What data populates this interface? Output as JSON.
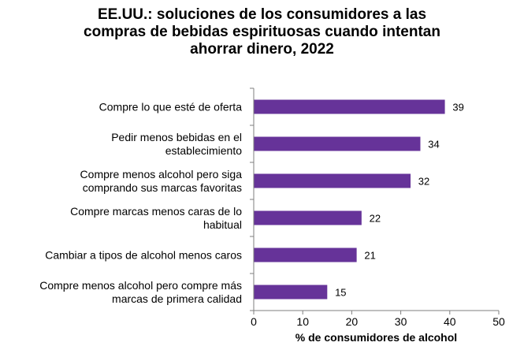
{
  "chart_data": {
    "type": "bar",
    "orientation": "horizontal",
    "title_lines": [
      "EE.UU.: soluciones de los consumidores a las",
      "compras de bebidas espirituosas cuando intentan",
      "ahorrar dinero, 2022"
    ],
    "categories": [
      [
        "Compre lo que esté de oferta"
      ],
      [
        "Pedir menos bebidas en el",
        "establecimiento"
      ],
      [
        "Compre menos alcohol pero siga",
        "comprando sus marcas favoritas"
      ],
      [
        "Compre marcas menos caras de lo",
        "habitual"
      ],
      [
        "Cambiar a tipos de alcohol menos caros"
      ],
      [
        "Compre menos alcohol pero compre más",
        "marcas de primera calidad"
      ]
    ],
    "values": [
      39,
      34,
      32,
      22,
      21,
      15
    ],
    "xlabel": "% de consumidores de alcohol",
    "ylabel": "",
    "xlim": [
      0,
      50
    ],
    "xticks": [
      0,
      10,
      20,
      30,
      40,
      50
    ],
    "grid": false,
    "bar_color": "#663399",
    "axis_color": "#7f7f7f"
  }
}
